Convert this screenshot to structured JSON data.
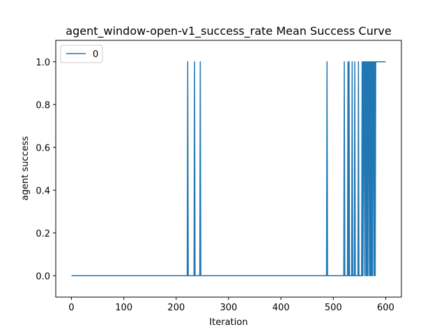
{
  "chart_data": {
    "type": "line",
    "title": "agent_window-open-v1_success_rate Mean Success Curve",
    "xlabel": "Iteration",
    "ylabel": "agent success",
    "xlim": [
      -30,
      630
    ],
    "ylim": [
      -0.1,
      1.1
    ],
    "xticks": [
      "0",
      "100",
      "200",
      "300",
      "400",
      "500",
      "600"
    ],
    "yticks": [
      "0.0",
      "0.2",
      "0.4",
      "0.6",
      "0.8",
      "1.0"
    ],
    "grid": false,
    "legend": {
      "position": "top-left",
      "entries": [
        "0"
      ]
    },
    "colors": {
      "series": "#1f77b4",
      "axis": "#000000",
      "background": "#ffffff"
    },
    "series": [
      {
        "name": "0",
        "x": [
          0,
          221,
          222,
          223,
          234,
          235,
          236,
          245,
          246,
          247,
          487,
          488,
          489,
          520,
          521,
          522,
          527,
          528,
          529,
          530,
          531,
          532,
          535,
          536,
          537,
          540,
          541,
          542,
          547,
          548,
          549,
          554,
          555,
          556,
          557,
          558,
          559,
          560,
          561,
          562,
          563,
          564,
          565,
          566,
          567,
          568,
          569,
          570,
          571,
          572,
          573,
          574,
          575,
          576,
          577,
          578,
          579,
          580,
          581,
          582,
          583,
          584,
          585,
          600
        ],
        "y": [
          0,
          0,
          1,
          0,
          0,
          1,
          0,
          0,
          1,
          0,
          0,
          1,
          0,
          0,
          1,
          0,
          0,
          1,
          0,
          1,
          0,
          0,
          0,
          1,
          0,
          0,
          1,
          0,
          0,
          1,
          0,
          0,
          1,
          0,
          1,
          1,
          0,
          1,
          1,
          0,
          1,
          0,
          1,
          0,
          1,
          1,
          0,
          1,
          0,
          1,
          0,
          1,
          0,
          1,
          1,
          0,
          1,
          0,
          1,
          1,
          1,
          1,
          1,
          1
        ]
      }
    ]
  }
}
